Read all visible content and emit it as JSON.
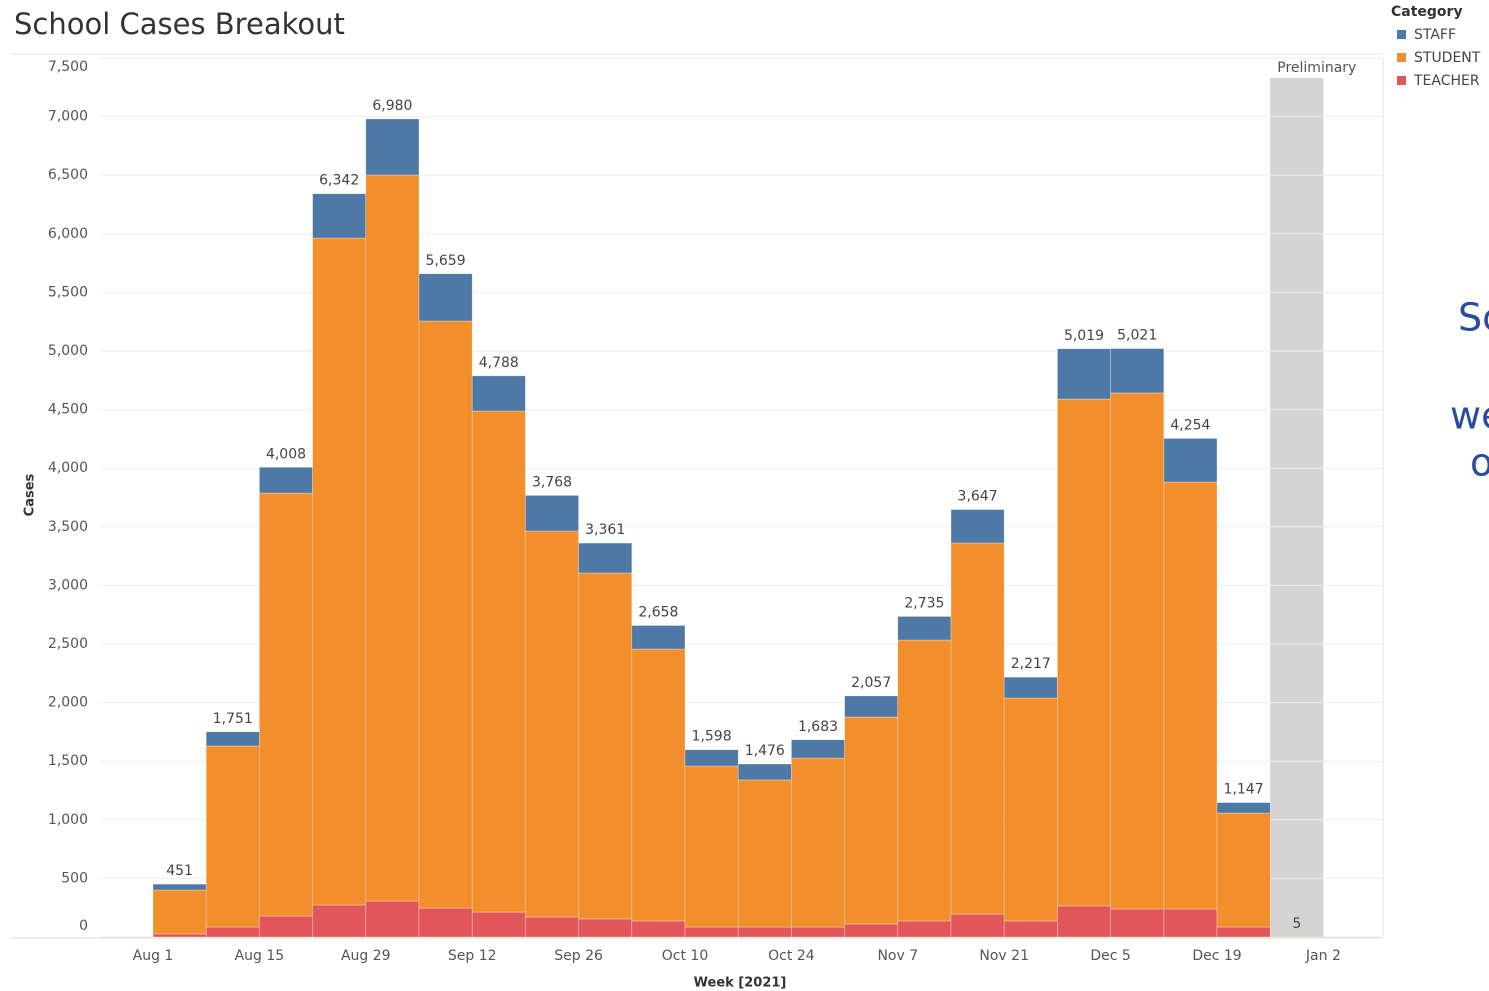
{
  "chart_data": {
    "type": "stacked_bar",
    "title": "School Cases Breakout",
    "y_label": "Cases",
    "x_label": "Week [2021]",
    "legend_title": "Category",
    "annotation": "Preliminary",
    "preliminary_index": 21,
    "categories": [
      "Aug 1",
      null,
      "Aug 15",
      null,
      "Aug 29",
      null,
      "Sep 12",
      null,
      "Sep 26",
      null,
      "Oct 10",
      null,
      "Oct 24",
      null,
      "Nov 7",
      null,
      "Nov 21",
      null,
      "Dec 5",
      null,
      "Dec 19",
      null,
      "Jan 2"
    ],
    "series": [
      {
        "name": "STAFF",
        "color": "#4e79a7",
        "values": [
          50,
          121,
          220,
          378,
          478,
          403,
          300,
          304,
          255,
          201,
          139,
          136,
          156,
          180,
          201,
          285,
          178,
          429,
          379,
          372,
          89,
          0,
          null
        ]
      },
      {
        "name": "STUDENT",
        "color": "#f28e2b",
        "values": [
          375,
          1545,
          3609,
          5691,
          6195,
          5009,
          4275,
          3293,
          2952,
          2320,
          1374,
          1255,
          1442,
          1766,
          2397,
          3166,
          1902,
          4325,
          4403,
          3643,
          973,
          5,
          null
        ]
      },
      {
        "name": "TEACHER",
        "color": "#e15759",
        "values": [
          26,
          85,
          179,
          273,
          307,
          247,
          213,
          171,
          154,
          137,
          85,
          85,
          85,
          111,
          137,
          196,
          137,
          265,
          239,
          239,
          85,
          0,
          null
        ]
      }
    ],
    "totals": {
      "values": [
        451,
        1751,
        4008,
        6342,
        6980,
        5659,
        4788,
        3768,
        3361,
        2658,
        1598,
        1476,
        1683,
        2057,
        2735,
        3647,
        2217,
        5019,
        5021,
        4254,
        1147,
        5,
        null
      ],
      "value_labels": [
        "451",
        "1,751",
        "4,008",
        "6,342",
        "6,980",
        "5,659",
        "4,788",
        "3,768",
        "3,361",
        "2,658",
        "1,598",
        "1,476",
        "1,683",
        "2,057",
        "2,735",
        "3,647",
        "2,217",
        "5,019",
        "5,021",
        "4,254",
        "1,147",
        "5",
        null
      ]
    },
    "ylim": [
      0,
      7500
    ],
    "yticks": [
      0,
      500,
      {
        "value": 1000,
        "label": "1,000"
      },
      {
        "value": 1500,
        "label": "1,500"
      },
      {
        "value": 2000,
        "label": "2,000"
      },
      {
        "value": 2500,
        "label": "2,500"
      },
      {
        "value": 3000,
        "label": "3,000"
      },
      {
        "value": 3500,
        "label": "3,500"
      },
      {
        "value": 4000,
        "label": "4,000"
      },
      {
        "value": 4500,
        "label": "4,500"
      },
      {
        "value": 5000,
        "label": "5,000"
      },
      {
        "value": 5500,
        "label": "5,500"
      },
      {
        "value": 6000,
        "label": "6,000"
      },
      {
        "value": 6500,
        "label": "6,500"
      },
      {
        "value": 7000,
        "label": "7,000"
      },
      {
        "value": 7500,
        "label": "7,500"
      }
    ],
    "grid": true
  },
  "side_text": [
    "Sc",
    "we",
    "o"
  ]
}
